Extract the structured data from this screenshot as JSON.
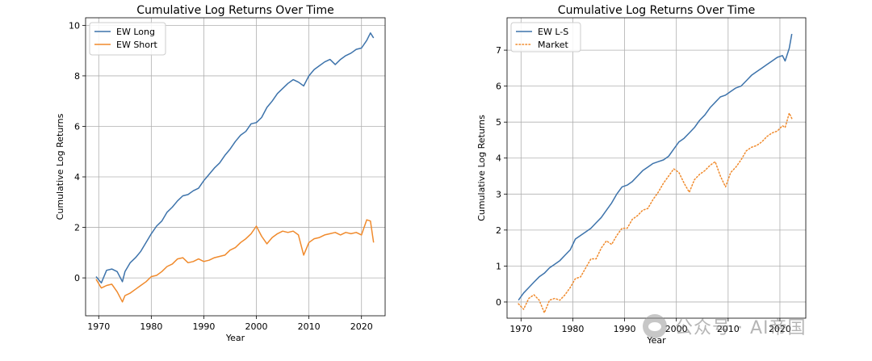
{
  "chart_data": [
    {
      "type": "line",
      "title": "Cumulative Log Returns Over Time",
      "xlabel": "Year",
      "ylabel": "Cumulative Log Returns",
      "xlim": [
        1967.5,
        2024.5
      ],
      "ylim": [
        -1.5,
        10.3
      ],
      "xticks": [
        1970,
        1980,
        1990,
        2000,
        2010,
        2020
      ],
      "yticks": [
        0,
        2,
        4,
        6,
        8,
        10
      ],
      "grid": true,
      "legend_position": "upper-left",
      "series": [
        {
          "name": "EW Long",
          "color": "#3d73ab",
          "style": "solid",
          "x": [
            1969.5,
            1970.5,
            1971.5,
            1972.5,
            1973.5,
            1974.5,
            1975,
            1976,
            1977,
            1978,
            1979,
            1980,
            1981,
            1982,
            1983,
            1984,
            1985,
            1986,
            1987,
            1988,
            1989,
            1990,
            1991,
            1992,
            1993,
            1994,
            1995,
            1996,
            1997,
            1998,
            1999,
            2000,
            2001,
            2002,
            2003,
            2004,
            2005,
            2006,
            2007,
            2008,
            2009,
            2010,
            2011,
            2012,
            2013,
            2014,
            2015,
            2016,
            2017,
            2018,
            2019,
            2020,
            2021,
            2021.7,
            2022.3
          ],
          "y": [
            0.05,
            -0.2,
            0.3,
            0.35,
            0.25,
            -0.15,
            0.25,
            0.6,
            0.8,
            1.05,
            1.4,
            1.75,
            2.05,
            2.25,
            2.6,
            2.8,
            3.05,
            3.25,
            3.3,
            3.45,
            3.55,
            3.85,
            4.1,
            4.35,
            4.55,
            4.85,
            5.1,
            5.4,
            5.65,
            5.8,
            6.1,
            6.15,
            6.35,
            6.75,
            7.0,
            7.3,
            7.5,
            7.7,
            7.85,
            7.75,
            7.6,
            8.0,
            8.25,
            8.4,
            8.55,
            8.65,
            8.45,
            8.65,
            8.8,
            8.9,
            9.05,
            9.1,
            9.4,
            9.7,
            9.5
          ]
        },
        {
          "name": "EW Short",
          "color": "#f08a2c",
          "style": "solid",
          "x": [
            1969.5,
            1970.5,
            1971.5,
            1972.5,
            1973.5,
            1974.5,
            1975,
            1976,
            1977,
            1978,
            1979,
            1980,
            1981,
            1982,
            1983,
            1984,
            1985,
            1986,
            1987,
            1988,
            1989,
            1990,
            1991,
            1992,
            1993,
            1994,
            1995,
            1996,
            1997,
            1998,
            1999,
            2000,
            2001,
            2002,
            2003,
            2004,
            2005,
            2006,
            2007,
            2008,
            2009,
            2010,
            2011,
            2012,
            2013,
            2014,
            2015,
            2016,
            2017,
            2018,
            2019,
            2020,
            2021,
            2021.7,
            2022.3
          ],
          "y": [
            -0.05,
            -0.4,
            -0.3,
            -0.25,
            -0.55,
            -0.95,
            -0.7,
            -0.6,
            -0.45,
            -0.3,
            -0.15,
            0.05,
            0.1,
            0.25,
            0.45,
            0.55,
            0.75,
            0.8,
            0.6,
            0.65,
            0.75,
            0.65,
            0.7,
            0.8,
            0.85,
            0.9,
            1.1,
            1.2,
            1.4,
            1.55,
            1.75,
            2.05,
            1.65,
            1.35,
            1.6,
            1.75,
            1.85,
            1.8,
            1.85,
            1.7,
            0.9,
            1.4,
            1.55,
            1.6,
            1.7,
            1.75,
            1.8,
            1.7,
            1.8,
            1.75,
            1.8,
            1.7,
            2.3,
            2.25,
            1.4
          ]
        }
      ]
    },
    {
      "type": "line",
      "title": "Cumulative Log Returns Over Time",
      "xlabel": "Year",
      "ylabel": "Cumulative Log Returns",
      "xlim": [
        1967.3,
        2025.0
      ],
      "ylim": [
        -0.45,
        7.9
      ],
      "xticks": [
        1970,
        1980,
        1990,
        2000,
        2010,
        2020
      ],
      "yticks": [
        0,
        1,
        2,
        3,
        4,
        5,
        6,
        7
      ],
      "grid": true,
      "legend_position": "upper-left",
      "series": [
        {
          "name": "EW L-S",
          "color": "#3d73ab",
          "style": "solid",
          "x": [
            1969.5,
            1970.5,
            1971.5,
            1972.5,
            1973.5,
            1974.5,
            1975.5,
            1976.5,
            1977.5,
            1978.5,
            1979.5,
            1980.5,
            1981.5,
            1982.5,
            1983.5,
            1984.5,
            1985.5,
            1986.5,
            1987.5,
            1988.5,
            1989.5,
            1990.5,
            1991.5,
            1992.5,
            1993.5,
            1994.5,
            1995.5,
            1996.5,
            1997.5,
            1998.5,
            1999.5,
            2000.5,
            2001.5,
            2002.5,
            2003.5,
            2004.5,
            2005.5,
            2006.5,
            2007.5,
            2008.5,
            2009.5,
            2010.5,
            2011.5,
            2012.5,
            2013.5,
            2014.5,
            2015.5,
            2016.5,
            2017.5,
            2018.5,
            2019.5,
            2020.5,
            2021,
            2021.8,
            2022.3
          ],
          "y": [
            0.05,
            0.25,
            0.4,
            0.55,
            0.7,
            0.8,
            0.95,
            1.05,
            1.15,
            1.3,
            1.45,
            1.75,
            1.85,
            1.95,
            2.05,
            2.2,
            2.35,
            2.55,
            2.75,
            3.0,
            3.2,
            3.25,
            3.35,
            3.5,
            3.65,
            3.75,
            3.85,
            3.9,
            3.95,
            4.05,
            4.25,
            4.45,
            4.55,
            4.7,
            4.85,
            5.05,
            5.2,
            5.4,
            5.55,
            5.7,
            5.75,
            5.85,
            5.95,
            6.0,
            6.15,
            6.3,
            6.4,
            6.5,
            6.6,
            6.7,
            6.8,
            6.85,
            6.7,
            7.05,
            7.45
          ]
        },
        {
          "name": "Market",
          "color": "#f08a2c",
          "style": "dotted",
          "x": [
            1969.5,
            1970.5,
            1971.5,
            1972.5,
            1973.5,
            1974.5,
            1975.5,
            1976.5,
            1977.5,
            1978.5,
            1979.5,
            1980.5,
            1981.5,
            1982.5,
            1983.5,
            1984.5,
            1985.5,
            1986.5,
            1987.5,
            1988.5,
            1989.5,
            1990.5,
            1991.5,
            1992.5,
            1993.5,
            1994.5,
            1995.5,
            1996.5,
            1997.5,
            1998.5,
            1999.5,
            2000.5,
            2001.5,
            2002.5,
            2003.5,
            2004.5,
            2005.5,
            2006.5,
            2007.5,
            2008.5,
            2009.5,
            2010.5,
            2011.5,
            2012.5,
            2013.5,
            2014.5,
            2015.5,
            2016.5,
            2017.5,
            2018.5,
            2019.5,
            2020.5,
            2021,
            2021.8,
            2022.3
          ],
          "y": [
            -0.05,
            -0.2,
            0.1,
            0.2,
            0.05,
            -0.3,
            0.05,
            0.1,
            0.05,
            0.2,
            0.4,
            0.65,
            0.7,
            0.95,
            1.2,
            1.2,
            1.5,
            1.7,
            1.6,
            1.85,
            2.05,
            2.05,
            2.3,
            2.4,
            2.55,
            2.6,
            2.85,
            3.05,
            3.3,
            3.5,
            3.7,
            3.6,
            3.3,
            3.05,
            3.4,
            3.55,
            3.65,
            3.8,
            3.9,
            3.5,
            3.2,
            3.6,
            3.75,
            3.95,
            4.2,
            4.3,
            4.35,
            4.45,
            4.6,
            4.7,
            4.75,
            4.9,
            4.85,
            5.25,
            5.1
          ]
        }
      ]
    }
  ],
  "watermark": {
    "text": "公众号 · AI帝国"
  }
}
